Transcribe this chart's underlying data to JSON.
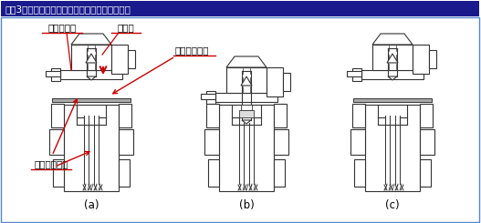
{
  "title": "【図3】リフタービンを利用したストリッピング",
  "title_bg": "#1a1a8c",
  "title_color": "#ffffff",
  "bg_color": "#ffffff",
  "border_color": "#5588cc",
  "line_color": "#333333",
  "arrow_color": "#cc0000",
  "label_stripper": "ストリッパ",
  "label_punch": "パンチ",
  "label_knockout": "ノックアウト",
  "label_lifterpin": "リフタービン",
  "label_a": "(a)",
  "label_b": "(b)",
  "label_c": "(c)",
  "fig_width": 5.27,
  "fig_height": 2.45,
  "dpi": 100
}
